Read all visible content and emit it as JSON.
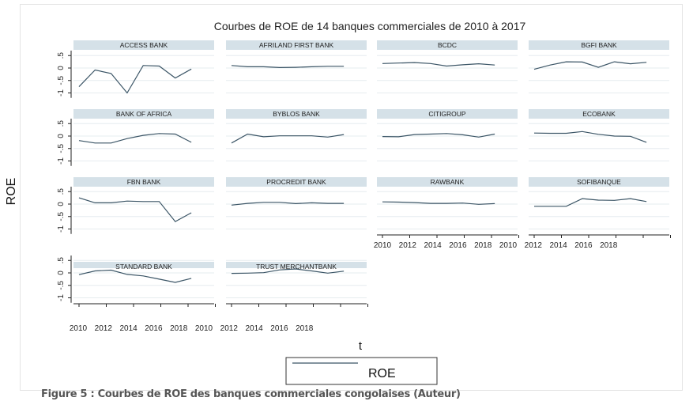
{
  "chart_data": {
    "type": "line",
    "title": "Courbes  de  ROE  de  14  banques  commerciales  de  2010  à  2017",
    "xlabel": "t",
    "ylabel": "ROE",
    "ylim": [
      -1,
      0.5
    ],
    "yticks": [
      -1,
      -0.5,
      0,
      0.5
    ],
    "ytick_labels": [
      "-1",
      "-.5",
      "0",
      ".5"
    ],
    "x": [
      2010,
      2011,
      2012,
      2013,
      2014,
      2015,
      2016,
      2017
    ],
    "xtick_labels": [
      "2010",
      "2012",
      "2014",
      "2016",
      "2018",
      "2010",
      "2012",
      "2014",
      "2016",
      "2018"
    ],
    "grid": true,
    "legend": {
      "position": "bottom",
      "entries": [
        "ROE"
      ]
    },
    "line_color": "#3b5566",
    "panels": [
      {
        "name": "ACCESS BANK",
        "values": [
          -0.75,
          -0.08,
          -0.22,
          -1.0,
          0.1,
          0.08,
          -0.4,
          -0.04
        ]
      },
      {
        "name": "AFRILAND FIRST BANK",
        "values": [
          0.1,
          0.05,
          0.05,
          0.02,
          0.03,
          0.05,
          0.07,
          0.07
        ]
      },
      {
        "name": "BCDC",
        "values": [
          0.18,
          0.2,
          0.22,
          0.18,
          0.08,
          0.13,
          0.17,
          0.12
        ]
      },
      {
        "name": "BGFI BANK",
        "values": [
          -0.05,
          0.12,
          0.25,
          0.24,
          0.03,
          0.25,
          0.17,
          0.23
        ]
      },
      {
        "name": "BANK OF AFRICA",
        "values": [
          -0.18,
          -0.28,
          -0.28,
          -0.1,
          0.03,
          0.1,
          0.08,
          -0.25
        ]
      },
      {
        "name": "BYBLOS BANK",
        "values": [
          -0.28,
          0.08,
          -0.03,
          0.01,
          0.01,
          0.01,
          -0.04,
          0.06
        ]
      },
      {
        "name": "CITIGROUP",
        "values": [
          -0.02,
          -0.03,
          0.06,
          0.08,
          0.1,
          0.05,
          -0.04,
          0.08
        ]
      },
      {
        "name": "ECOBANK",
        "values": [
          0.12,
          0.11,
          0.11,
          0.18,
          0.07,
          0.0,
          -0.01,
          -0.25
        ]
      },
      {
        "name": "FBN BANK",
        "values": [
          0.25,
          0.05,
          0.05,
          0.12,
          0.1,
          0.1,
          -0.7,
          -0.35
        ]
      },
      {
        "name": "PROCREDIT BANK",
        "values": [
          -0.04,
          0.03,
          0.07,
          0.07,
          0.02,
          0.05,
          0.03,
          0.03
        ]
      },
      {
        "name": "RAWBANK",
        "values": [
          0.09,
          0.08,
          0.06,
          0.03,
          0.03,
          0.04,
          -0.01,
          0.02
        ]
      },
      {
        "name": "SOFIBANQUE",
        "values": [
          -0.09,
          -0.09,
          -0.09,
          0.22,
          0.16,
          0.15,
          0.22,
          0.1
        ]
      },
      {
        "name": "STANDARD BANK",
        "values": [
          -0.07,
          0.08,
          0.11,
          -0.06,
          -0.12,
          -0.25,
          -0.38,
          -0.22
        ]
      },
      {
        "name": "TRUST MERCHANTBANK",
        "values": [
          -0.02,
          -0.01,
          0.01,
          0.12,
          0.16,
          0.08,
          -0.01,
          0.07
        ]
      }
    ]
  },
  "caption": "Figure 5 : Courbes de ROE des banques commerciales congolaises (Auteur)"
}
